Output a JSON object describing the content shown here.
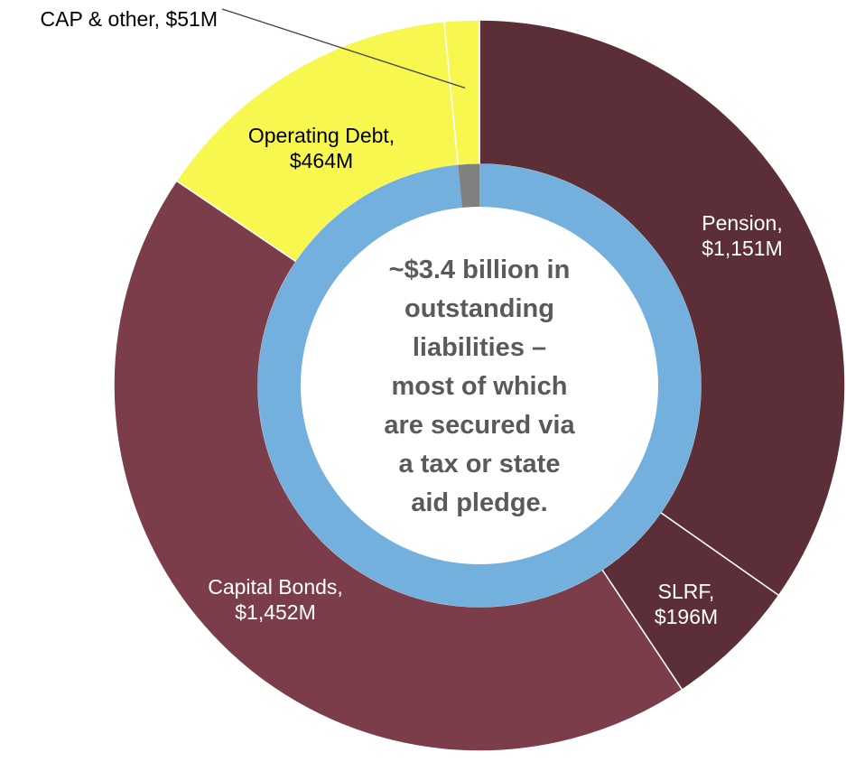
{
  "chart_data": {
    "type": "pie",
    "categories": [
      "Pension",
      "SLRF",
      "Capital Bonds",
      "Operating Debt",
      "CAP & other"
    ],
    "values": [
      1151,
      196,
      1452,
      464,
      51
    ],
    "unit": "$M",
    "labels": [
      [
        "Pension,",
        "$1,151M"
      ],
      [
        "SLRF,",
        "$196M"
      ],
      [
        "Capital Bonds,",
        "$1,452M"
      ],
      [
        "Operating Debt,",
        "$464M"
      ],
      [
        "CAP & other, $51M"
      ]
    ],
    "colors": [
      "#5c2e38",
      "#5c2e38",
      "#7b3d49",
      "#f7f74f",
      "#f7f74f"
    ],
    "inner_ring": {
      "values": [
        3263,
        51
      ],
      "colors": [
        "#74b0dd",
        "#808080"
      ]
    },
    "center_text": [
      "~$3.4 billion in",
      "outstanding",
      "liabilities –",
      "most of which",
      "are secured via",
      "a tax or state",
      "aid pledge."
    ]
  }
}
